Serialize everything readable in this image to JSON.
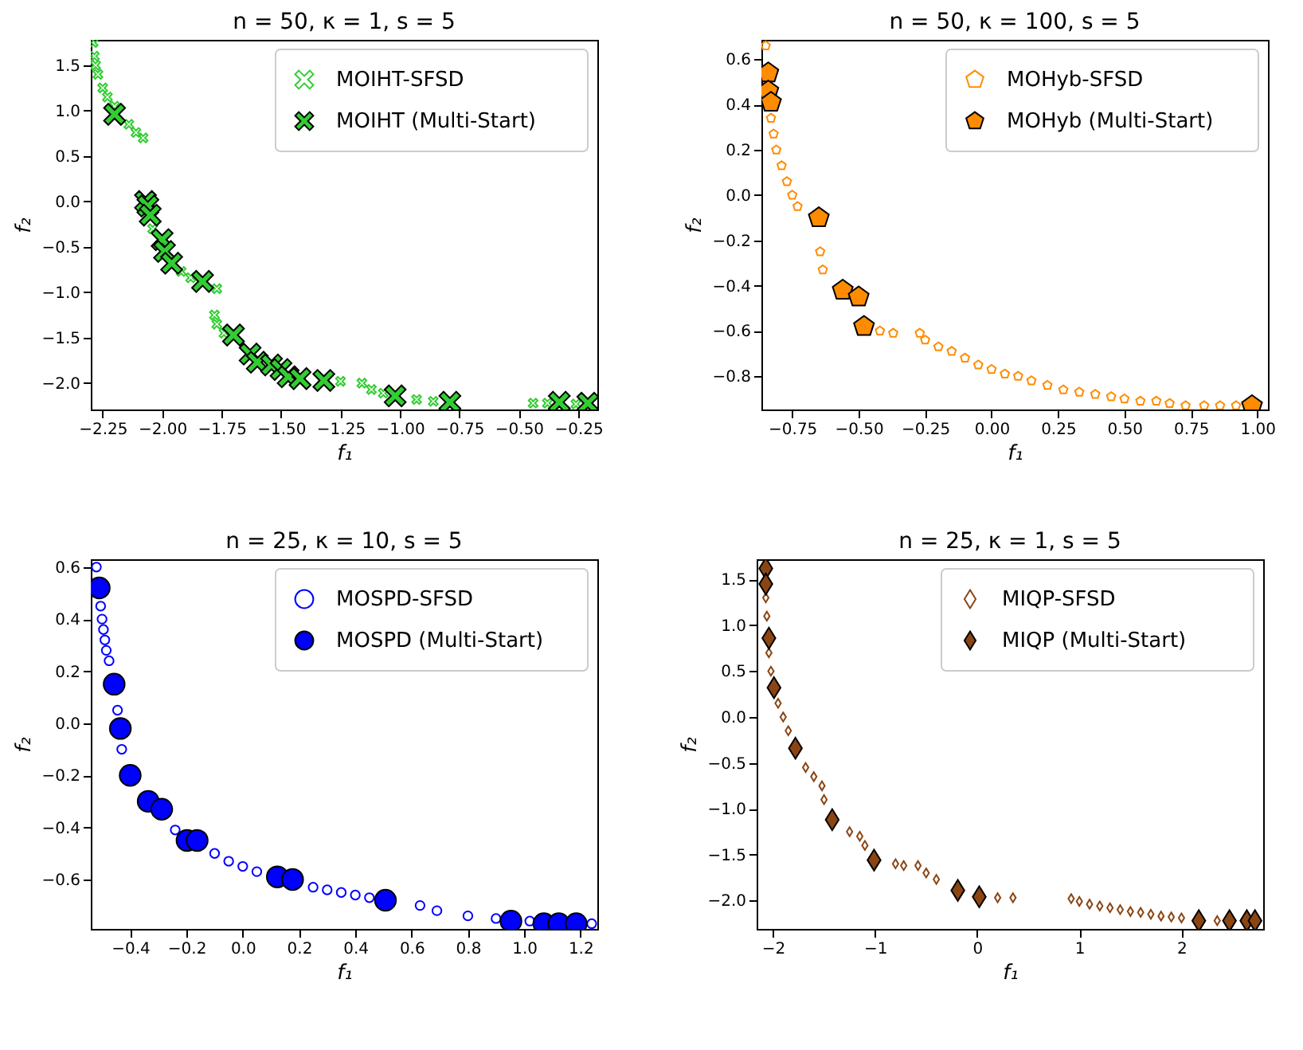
{
  "chart_data": [
    {
      "type": "scatter",
      "title": "n = 50, κ = 1, s = 5",
      "xlabel": "f₁",
      "ylabel": "f₂",
      "marker": "cross",
      "legend": "top right",
      "grid": false,
      "xlim": [
        -2.3,
        -0.17
      ],
      "ylim": [
        -2.29,
        1.78
      ],
      "xticks": [
        {
          "value": -2.25,
          "label": "−2.25"
        },
        {
          "value": -2.0,
          "label": "−2.00"
        },
        {
          "value": -1.75,
          "label": "−1.75"
        },
        {
          "value": -1.5,
          "label": "−1.50"
        },
        {
          "value": -1.25,
          "label": "−1.25"
        },
        {
          "value": -1.0,
          "label": "−1.00"
        },
        {
          "value": -0.75,
          "label": "−0.75"
        },
        {
          "value": -0.5,
          "label": "−0.50"
        },
        {
          "value": -0.25,
          "label": "−0.25"
        }
      ],
      "yticks": [
        {
          "value": -2.0,
          "label": "−2.0"
        },
        {
          "value": -1.5,
          "label": "−1.5"
        },
        {
          "value": -1.0,
          "label": "−1.0"
        },
        {
          "value": -0.5,
          "label": "−0.5"
        },
        {
          "value": 0,
          "label": "0.0"
        },
        0.5,
        {
          "value": 1,
          "label": "1.0"
        },
        1.5
      ],
      "series": [
        {
          "name": "MOIHT-SFSD",
          "color": "#32cd32",
          "x": [
            -2.29,
            -2.285,
            -2.28,
            -2.27,
            -2.25,
            -2.23,
            -2.2,
            -2.14,
            -2.11,
            -2.08,
            -2.04,
            -1.92,
            -1.88,
            -1.77,
            -1.78,
            -1.77,
            -1.74,
            -1.25,
            -1.16,
            -1.12,
            -1.07,
            -0.93,
            -0.86,
            -0.44,
            -0.38,
            -0.26
          ],
          "values": [
            1.75,
            1.6,
            1.5,
            1.4,
            1.25,
            1.15,
            1.05,
            0.85,
            0.76,
            0.7,
            -0.3,
            -0.77,
            -0.84,
            -0.96,
            -1.25,
            -1.35,
            -1.45,
            -1.98,
            -2.0,
            -2.07,
            -2.11,
            -2.18,
            -2.2,
            -2.22,
            -2.22,
            -2.23
          ]
        },
        {
          "name": "MOIHT (Multi-Start)",
          "color": "#32cd32",
          "x": [
            -2.2,
            -2.07,
            -2.06,
            -2.05,
            -2.0,
            -1.99,
            -1.96,
            -1.83,
            -1.7,
            -1.63,
            -1.6,
            -1.54,
            -1.5,
            -1.47,
            -1.42,
            -1.32,
            -1.02,
            -0.79,
            -0.33,
            -0.21
          ],
          "values": [
            0.96,
            0.0,
            -0.05,
            -0.15,
            -0.42,
            -0.55,
            -0.68,
            -0.88,
            -1.47,
            -1.68,
            -1.77,
            -1.8,
            -1.85,
            -1.93,
            -1.95,
            -1.97,
            -2.14,
            -2.21,
            -2.21,
            -2.22
          ]
        }
      ]
    },
    {
      "type": "scatter",
      "title": "n = 50, κ = 100, s = 5",
      "xlabel": "f₁",
      "ylabel": "f₂",
      "legend": "top right",
      "grid": false,
      "xlim": [
        -0.866,
        1.04
      ],
      "ylim": [
        -0.947,
        0.686
      ],
      "xticks": [
        {
          "value": -0.75,
          "label": "−0.75"
        },
        {
          "value": -0.5,
          "label": "−0.50"
        },
        {
          "value": -0.25,
          "label": "−0.25"
        },
        {
          "value": 0,
          "label": "0.00"
        },
        0.25,
        {
          "value": 0.5,
          "label": "0.50"
        },
        0.75,
        {
          "value": 1,
          "label": "1.00"
        }
      ],
      "yticks": [
        {
          "value": -0.8,
          "label": "−0.8"
        },
        {
          "value": -0.6,
          "label": "−0.6"
        },
        {
          "value": -0.4,
          "label": "−0.4"
        },
        {
          "value": -0.2,
          "label": "−0.2"
        },
        {
          "value": 0,
          "label": "0.0"
        },
        0.2,
        0.4,
        0.6
      ],
      "series": [
        {
          "name": "MOHyb-SFSD",
          "color": "#ff8c00",
          "x": [
            -0.85,
            -0.83,
            -0.82,
            -0.81,
            -0.79,
            -0.77,
            -0.75,
            -0.73,
            -0.645,
            -0.635,
            -0.42,
            -0.37,
            -0.27,
            -0.25,
            -0.2,
            -0.15,
            -0.1,
            -0.05,
            0.0,
            0.05,
            0.1,
            0.15,
            0.21,
            0.27,
            0.33,
            0.39,
            0.45,
            0.5,
            0.56,
            0.62,
            0.67,
            0.73,
            0.8,
            0.86,
            0.92
          ],
          "values": [
            0.66,
            0.34,
            0.27,
            0.2,
            0.13,
            0.06,
            0.0,
            -0.05,
            -0.25,
            -0.33,
            -0.6,
            -0.61,
            -0.61,
            -0.64,
            -0.67,
            -0.69,
            -0.72,
            -0.75,
            -0.77,
            -0.79,
            -0.8,
            -0.82,
            -0.84,
            -0.86,
            -0.87,
            -0.88,
            -0.89,
            -0.9,
            -0.91,
            -0.91,
            -0.92,
            -0.93,
            -0.93,
            -0.93,
            -0.93
          ]
        },
        {
          "name": "MOHyb (Multi-Start)",
          "color": "#ff8c00",
          "x": [
            -0.84,
            -0.84,
            -0.83,
            -0.65,
            -0.56,
            -0.5,
            -0.48,
            0.98
          ],
          "values": [
            0.54,
            0.46,
            0.41,
            -0.1,
            -0.42,
            -0.45,
            -0.58,
            -0.93
          ]
        }
      ]
    },
    {
      "type": "scatter",
      "title": "n = 25, κ = 10, s = 5",
      "xlabel": "f₁",
      "ylabel": "f₂",
      "marker": "circle",
      "legend": "top right",
      "grid": false,
      "xlim": [
        -0.54,
        1.26
      ],
      "ylim": [
        -0.79,
        0.63
      ],
      "xticks": [
        {
          "value": -0.4,
          "label": "−0.4"
        },
        {
          "value": -0.2,
          "label": "−0.2"
        },
        {
          "value": 0,
          "label": "0.0"
        },
        0.2,
        0.4,
        0.6,
        0.8,
        {
          "value": 1,
          "label": "1.0"
        },
        1.2
      ],
      "yticks": [
        {
          "value": -0.6,
          "label": "−0.6"
        },
        {
          "value": -0.4,
          "label": "−0.4"
        },
        {
          "value": -0.2,
          "label": "−0.2"
        },
        {
          "value": 0,
          "label": "0.0"
        },
        0.2,
        0.4,
        0.6
      ],
      "series": [
        {
          "name": "MOSPD-SFSD",
          "color": "#0000ff",
          "x": [
            -0.52,
            -0.505,
            -0.5,
            -0.495,
            -0.49,
            -0.485,
            -0.475,
            -0.445,
            -0.43,
            -0.24,
            -0.1,
            -0.05,
            0.0,
            0.05,
            0.25,
            0.3,
            0.35,
            0.4,
            0.45,
            0.63,
            0.69,
            0.8,
            0.9,
            1.02,
            1.24
          ],
          "values": [
            0.6,
            0.45,
            0.4,
            0.36,
            0.32,
            0.28,
            0.24,
            0.05,
            -0.1,
            -0.41,
            -0.5,
            -0.53,
            -0.55,
            -0.57,
            -0.63,
            -0.64,
            -0.65,
            -0.66,
            -0.67,
            -0.7,
            -0.72,
            -0.74,
            -0.75,
            -0.76,
            -0.77
          ]
        },
        {
          "name": "MOSPD (Multi-Start)",
          "color": "#0000ff",
          "x": [
            -0.51,
            -0.457,
            -0.435,
            -0.4,
            -0.336,
            -0.288,
            -0.198,
            -0.162,
            0.123,
            0.177,
            0.507,
            0.953,
            1.07,
            1.123,
            1.185
          ],
          "values": [
            0.52,
            0.15,
            -0.02,
            -0.2,
            -0.3,
            -0.33,
            -0.45,
            -0.45,
            -0.59,
            -0.6,
            -0.68,
            -0.76,
            -0.77,
            -0.77,
            -0.77
          ]
        }
      ]
    },
    {
      "type": "scatter",
      "title": "n = 25, κ = 1, s = 5",
      "xlabel": "f₁",
      "ylabel": "f₂",
      "marker": "diamond",
      "legend": "top right",
      "grid": false,
      "xlim": [
        -2.16,
        2.8
      ],
      "ylim": [
        -2.31,
        1.72
      ],
      "xticks": [
        {
          "value": -2,
          "label": "−2"
        },
        {
          "value": -1,
          "label": "−1"
        },
        0,
        1,
        2
      ],
      "yticks": [
        {
          "value": -2.0,
          "label": "−2.0"
        },
        {
          "value": -1.5,
          "label": "−1.5"
        },
        {
          "value": -1.0,
          "label": "−1.0"
        },
        {
          "value": -0.5,
          "label": "−0.5"
        },
        {
          "value": 0,
          "label": "0.0"
        },
        0.5,
        {
          "value": 1,
          "label": "1.0"
        },
        1.5
      ],
      "series": [
        {
          "name": "MIQP-SFSD",
          "color": "#8b4513",
          "x": [
            -2.07,
            -2.06,
            -2.04,
            -2.02,
            -1.95,
            -1.9,
            -1.85,
            -1.68,
            -1.6,
            -1.52,
            -1.5,
            -1.25,
            -1.15,
            -1.1,
            -0.8,
            -0.72,
            -0.58,
            -0.5,
            -0.4,
            0.2,
            0.35,
            0.92,
            1.0,
            1.1,
            1.2,
            1.3,
            1.4,
            1.5,
            1.6,
            1.7,
            1.8,
            1.9,
            2.0,
            2.35
          ],
          "values": [
            1.3,
            1.1,
            0.7,
            0.5,
            0.15,
            0.0,
            -0.15,
            -0.55,
            -0.65,
            -0.75,
            -0.9,
            -1.25,
            -1.3,
            -1.4,
            -1.6,
            -1.62,
            -1.62,
            -1.7,
            -1.77,
            -1.97,
            -1.97,
            -1.98,
            -2.01,
            -2.04,
            -2.06,
            -2.08,
            -2.1,
            -2.12,
            -2.13,
            -2.15,
            -2.17,
            -2.18,
            -2.19,
            -2.22
          ]
        },
        {
          "name": "MIQP (Multi-Start)",
          "color": "#8b4513",
          "x": [
            -2.07,
            -2.07,
            -2.04,
            -1.99,
            -1.78,
            -1.42,
            -1.01,
            -0.19,
            0.02,
            2.17,
            2.47,
            2.64,
            2.72
          ],
          "values": [
            1.62,
            1.45,
            0.86,
            0.32,
            -0.34,
            -1.12,
            -1.56,
            -1.89,
            -1.96,
            -2.22,
            -2.22,
            -2.22,
            -2.22
          ]
        }
      ]
    }
  ]
}
